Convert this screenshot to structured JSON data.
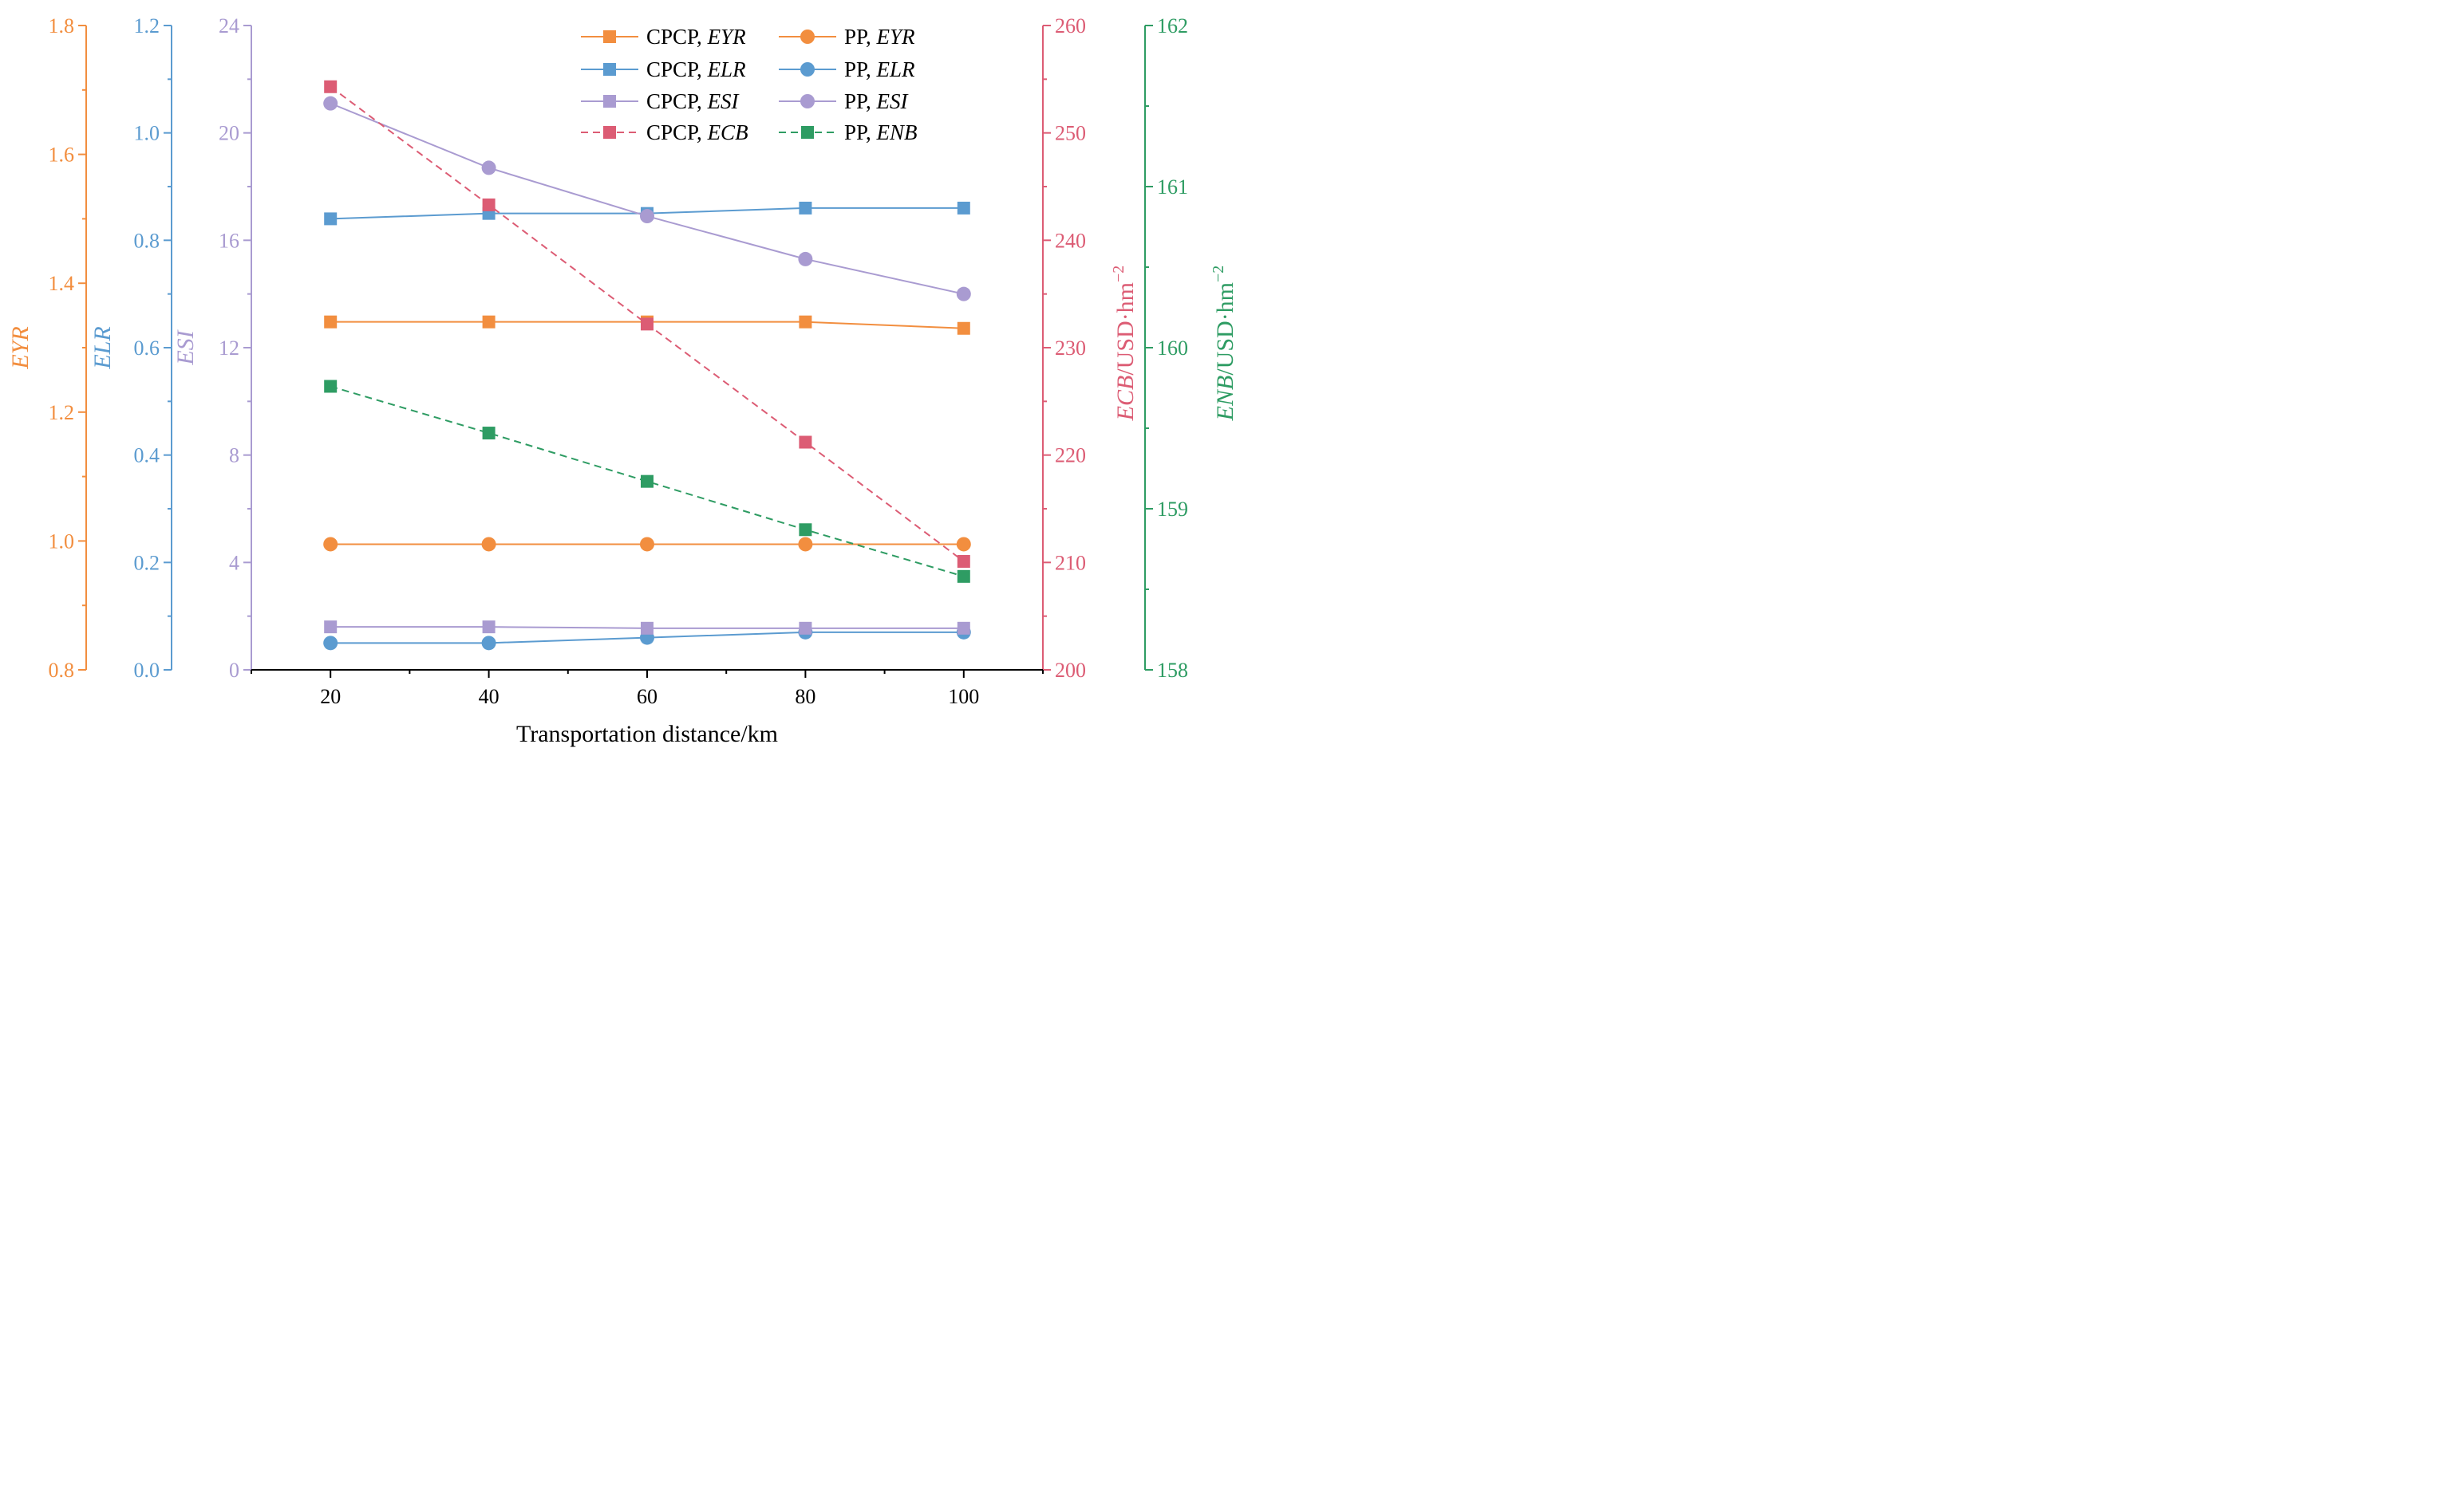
{
  "chart_data": {
    "type": "line",
    "title": "",
    "xlabel": "Transportation distance/km",
    "x": [
      20,
      40,
      60,
      80,
      100
    ],
    "xlim": [
      10,
      110
    ],
    "x_ticks": [
      20,
      40,
      60,
      80,
      100
    ],
    "colors": {
      "EYR": "#f28e3f",
      "ELR": "#5b9bd0",
      "ESI": "#a99bd1",
      "ECB": "#dc5c74",
      "ENB": "#2e9c63"
    },
    "axes": {
      "EYR": {
        "label": "EYR",
        "range": [
          0.8,
          1.8
        ],
        "ticks": [
          "0.8",
          "1.0",
          "1.2",
          "1.4",
          "1.6",
          "1.8"
        ]
      },
      "ELR": {
        "label": "ELR",
        "range": [
          0.0,
          1.2
        ],
        "ticks": [
          "0.0",
          "0.2",
          "0.4",
          "0.6",
          "0.8",
          "1.0",
          "1.2"
        ]
      },
      "ESI": {
        "label": "ESI",
        "range": [
          0,
          24
        ],
        "ticks": [
          "0",
          "4",
          "8",
          "12",
          "16",
          "20",
          "24"
        ]
      },
      "ECB": {
        "label_italic": "ECB",
        "label_unit": "/USD·hm",
        "label_sup": "−2",
        "range": [
          200,
          260
        ],
        "ticks": [
          "200",
          "210",
          "220",
          "230",
          "240",
          "250",
          "260"
        ]
      },
      "ENB": {
        "label_italic": "ENB",
        "label_unit": "/USD·hm",
        "label_sup": "−2",
        "range": [
          158,
          162
        ],
        "ticks": [
          "158",
          "159",
          "160",
          "161",
          "162"
        ]
      }
    },
    "series": [
      {
        "name": "CPCP, EYR",
        "prefix": "CPCP, ",
        "metric": "EYR",
        "axis": "EYR",
        "marker": "square",
        "dash": false,
        "values": [
          1.34,
          1.34,
          1.34,
          1.34,
          1.33
        ]
      },
      {
        "name": "PP, EYR",
        "prefix": "PP, ",
        "metric": "EYR",
        "axis": "EYR",
        "marker": "circle",
        "dash": false,
        "values": [
          0.995,
          0.995,
          0.995,
          0.995,
          0.995
        ]
      },
      {
        "name": "CPCP, ELR",
        "prefix": "CPCP, ",
        "metric": "ELR",
        "axis": "ELR",
        "marker": "square",
        "dash": false,
        "values": [
          0.84,
          0.85,
          0.85,
          0.86,
          0.86
        ]
      },
      {
        "name": "PP, ELR",
        "prefix": "PP, ",
        "metric": "ELR",
        "axis": "ELR",
        "marker": "circle",
        "dash": false,
        "values": [
          0.05,
          0.05,
          0.06,
          0.07,
          0.07
        ]
      },
      {
        "name": "CPCP, ESI",
        "prefix": "CPCP, ",
        "metric": "ESI",
        "axis": "ESI",
        "marker": "square",
        "dash": false,
        "values": [
          1.6,
          1.6,
          1.55,
          1.55,
          1.55
        ]
      },
      {
        "name": "PP, ESI",
        "prefix": "PP, ",
        "metric": "ESI",
        "axis": "ESI",
        "marker": "circle",
        "dash": false,
        "values": [
          21.1,
          18.7,
          16.9,
          15.3,
          14.0
        ]
      },
      {
        "name": "CPCP, ECB",
        "prefix": "CPCP, ",
        "metric": "ECB",
        "axis": "ECB",
        "marker": "square",
        "dash": true,
        "values": [
          254.3,
          243.3,
          232.2,
          221.2,
          210.1
        ]
      },
      {
        "name": "PP, ENB",
        "prefix": "PP, ",
        "metric": "ENB",
        "axis": "ENB",
        "marker": "square",
        "dash": true,
        "values": [
          159.76,
          159.47,
          159.17,
          158.87,
          158.58
        ]
      }
    ],
    "legend": {
      "placement": "top-center",
      "columns": 2
    }
  }
}
